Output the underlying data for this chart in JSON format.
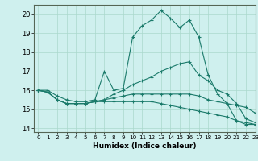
{
  "xlabel": "Humidex (Indice chaleur)",
  "xlim": [
    -0.5,
    23
  ],
  "ylim": [
    13.8,
    20.5
  ],
  "yticks": [
    14,
    15,
    16,
    17,
    18,
    19,
    20
  ],
  "xticks": [
    0,
    1,
    2,
    3,
    4,
    5,
    6,
    7,
    8,
    9,
    10,
    11,
    12,
    13,
    14,
    15,
    16,
    17,
    18,
    19,
    20,
    21,
    22,
    23
  ],
  "bg_color": "#cff0ee",
  "grid_color": "#aad8cc",
  "line_color": "#1a7a6a",
  "lines": [
    [
      16.0,
      16.0,
      15.7,
      15.5,
      15.4,
      15.4,
      15.5,
      17.0,
      16.0,
      16.1,
      18.8,
      19.4,
      19.7,
      20.2,
      19.8,
      19.3,
      19.7,
      18.8,
      16.8,
      15.8,
      15.3,
      14.4,
      14.2,
      14.2
    ],
    [
      16.0,
      15.9,
      15.5,
      15.3,
      15.3,
      15.3,
      15.4,
      15.5,
      15.8,
      16.0,
      16.3,
      16.5,
      16.7,
      17.0,
      17.2,
      17.4,
      17.5,
      16.8,
      16.5,
      16.0,
      15.8,
      15.3,
      14.5,
      14.3
    ],
    [
      16.0,
      15.9,
      15.5,
      15.3,
      15.3,
      15.3,
      15.4,
      15.5,
      15.6,
      15.7,
      15.8,
      15.8,
      15.8,
      15.8,
      15.8,
      15.8,
      15.8,
      15.7,
      15.5,
      15.4,
      15.3,
      15.2,
      15.1,
      14.8
    ],
    [
      16.0,
      15.9,
      15.5,
      15.3,
      15.3,
      15.3,
      15.4,
      15.4,
      15.4,
      15.4,
      15.4,
      15.4,
      15.4,
      15.3,
      15.2,
      15.1,
      15.0,
      14.9,
      14.8,
      14.7,
      14.6,
      14.4,
      14.3,
      14.2
    ]
  ]
}
